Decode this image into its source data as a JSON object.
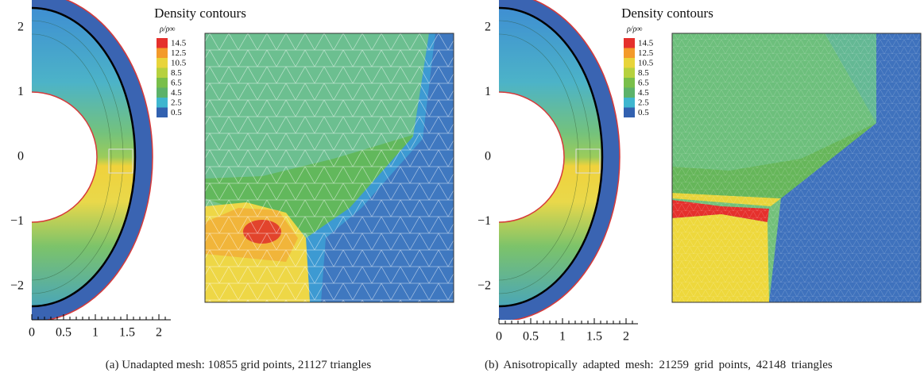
{
  "panels": [
    {
      "title": "Density contours",
      "colorbar_label": "ρ/ρ∞",
      "colorbar_levels": [
        "14.5",
        "12.5",
        "10.5",
        "8.5",
        "6.5",
        "4.5",
        "2.5",
        "0.5"
      ],
      "yticks": [
        "2",
        "1",
        "0",
        "−1",
        "−2"
      ],
      "xticks": [
        "0",
        "0.5",
        "1",
        "1.5",
        "2"
      ],
      "caption": "(a)  Unadapted mesh: 10855 grid points, 21127 triangles"
    },
    {
      "title": "Density contours",
      "colorbar_label": "ρ/ρ∞",
      "colorbar_levels": [
        "14.5",
        "12.5",
        "10.5",
        "8.5",
        "6.5",
        "4.5",
        "2.5",
        "0.5"
      ],
      "yticks": [
        "2",
        "1",
        "0",
        "−1",
        "−2"
      ],
      "xticks": [
        "0",
        "0.5",
        "1",
        "1.5",
        "2"
      ],
      "caption": "(b)  Anisotropically adapted mesh: 21259 grid points, 42148 triangles"
    }
  ]
}
